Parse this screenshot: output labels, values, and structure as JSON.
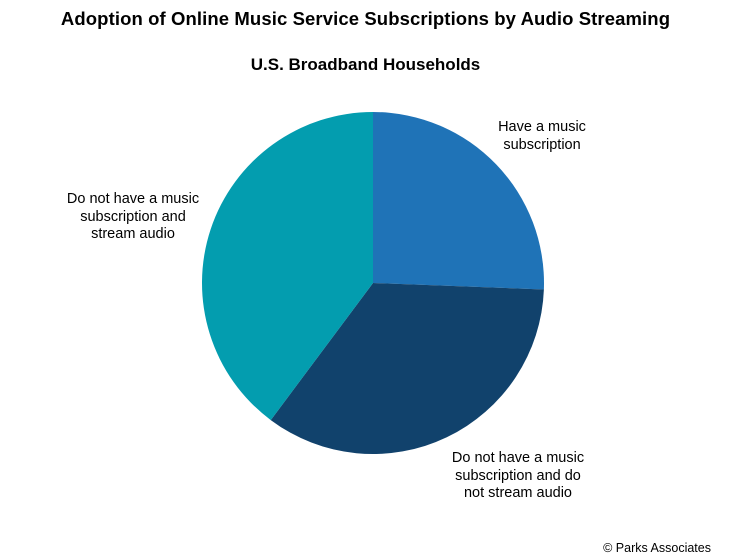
{
  "chart_data": {
    "type": "pie",
    "title": "Adoption of Online Music Service Subscriptions by Audio Streaming",
    "subtitle": "U.S. Broadband Households",
    "slices": [
      {
        "label": "Have a music subscription",
        "value": 25.6,
        "color": "#1f73b7"
      },
      {
        "label": "Do not have a music subscription and do not stream audio",
        "value": 34.6,
        "color": "#11426c"
      },
      {
        "label": "Do not have a music subscription and stream audio",
        "value": 39.8,
        "color": "#039daf"
      }
    ],
    "start_angle_deg": 0,
    "direction": "clockwise",
    "legend": "none",
    "credit": "© Parks Associates"
  }
}
